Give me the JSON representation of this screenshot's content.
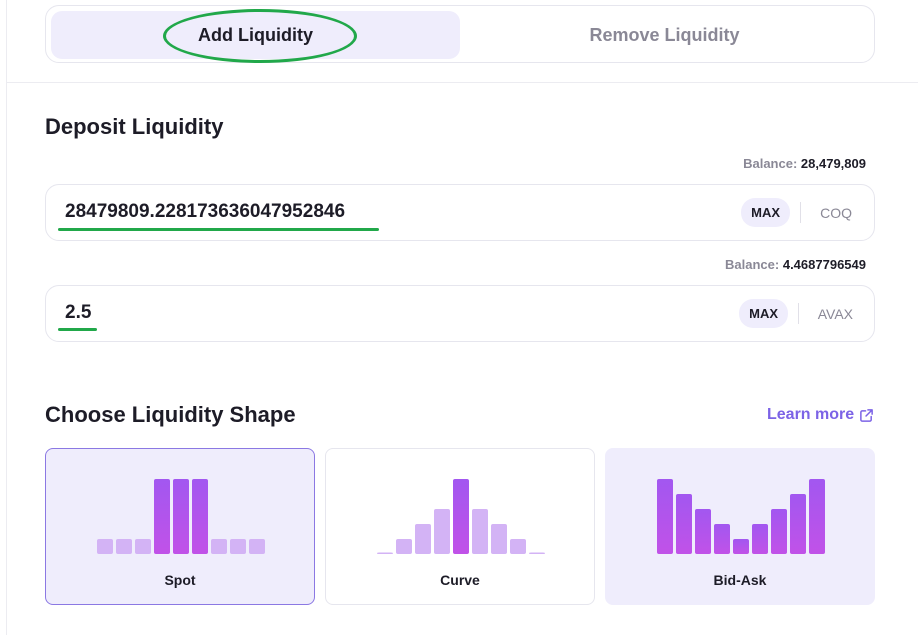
{
  "tabs": {
    "add_label": "Add Liquidity",
    "remove_label": "Remove Liquidity"
  },
  "deposit": {
    "title": "Deposit Liquidity",
    "balance_label": "Balance:",
    "token_a": {
      "balance": "28,479,809",
      "amount": "28479809.228173636047952846",
      "max_label": "MAX",
      "symbol": "COQ"
    },
    "token_b": {
      "balance": "4.4687796549",
      "amount": "2.5",
      "max_label": "MAX",
      "symbol": "AVAX"
    }
  },
  "shape": {
    "title": "Choose Liquidity Shape",
    "learn_more": "Learn more",
    "options": [
      {
        "label": "Spot",
        "bars": [
          0.2,
          0.2,
          0.2,
          1.0,
          1.0,
          1.0,
          0.2,
          0.2,
          0.2
        ],
        "strong": [
          false,
          false,
          false,
          true,
          true,
          true,
          false,
          false,
          false
        ]
      },
      {
        "label": "Curve",
        "bars": [
          0.02,
          0.2,
          0.4,
          0.6,
          1.0,
          0.6,
          0.4,
          0.2,
          0.02
        ],
        "strong": [
          false,
          false,
          false,
          false,
          true,
          false,
          false,
          false,
          false
        ]
      },
      {
        "label": "Bid-Ask",
        "bars": [
          1.0,
          0.8,
          0.6,
          0.4,
          0.2,
          0.4,
          0.6,
          0.8,
          1.0
        ],
        "strong": [
          true,
          true,
          true,
          true,
          true,
          true,
          true,
          true,
          true
        ]
      }
    ]
  },
  "colors": {
    "accent": "#7c63e6",
    "annotation": "#21a84a",
    "bar_strong_top": "#a257f0",
    "bar_strong_bottom": "#c152e8",
    "bar_light": "#d3b3f5"
  }
}
